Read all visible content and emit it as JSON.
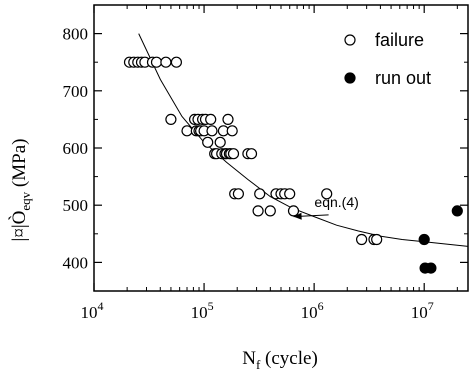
{
  "chart_data": {
    "type": "scatter",
    "x_scale": "log",
    "xlim": [
      10000,
      25000000
    ],
    "ylim": [
      350,
      850
    ],
    "x_ticks": [
      10000,
      100000,
      1000000,
      10000000
    ],
    "x_tick_labels": [
      {
        "base": "10",
        "exp": "4"
      },
      {
        "base": "10",
        "exp": "5"
      },
      {
        "base": "10",
        "exp": "6"
      },
      {
        "base": "10",
        "exp": "7"
      }
    ],
    "y_ticks": [
      400,
      500,
      600,
      700,
      800
    ],
    "y_tick_labels": [
      "400",
      "500",
      "600",
      "700",
      "800"
    ],
    "xlabel": {
      "main": "N",
      "sub": "f",
      "rest": " (cycle)"
    },
    "ylabel": {
      "main": "|¤|Ò",
      "sub": "eqv",
      "rest": " (MPa)"
    },
    "grid": false,
    "legend": {
      "placement": "top-right",
      "entries": [
        "failure",
        "run out"
      ]
    },
    "series": [
      {
        "name": "failure",
        "marker": "open-circle",
        "points": [
          [
            21000,
            750
          ],
          [
            23000,
            750
          ],
          [
            25000,
            750
          ],
          [
            27000,
            750
          ],
          [
            29000,
            750
          ],
          [
            34000,
            750
          ],
          [
            37000,
            750
          ],
          [
            45000,
            750
          ],
          [
            56000,
            750
          ],
          [
            50000,
            650
          ],
          [
            70000,
            630
          ],
          [
            82000,
            650
          ],
          [
            85000,
            630
          ],
          [
            88000,
            650
          ],
          [
            90000,
            630
          ],
          [
            93000,
            630
          ],
          [
            97000,
            650
          ],
          [
            100000,
            630
          ],
          [
            103000,
            650
          ],
          [
            108000,
            610
          ],
          [
            115000,
            650
          ],
          [
            118000,
            630
          ],
          [
            125000,
            590
          ],
          [
            130000,
            590
          ],
          [
            140000,
            610
          ],
          [
            145000,
            590
          ],
          [
            150000,
            630
          ],
          [
            155000,
            590
          ],
          [
            160000,
            590
          ],
          [
            165000,
            650
          ],
          [
            170000,
            590
          ],
          [
            175000,
            590
          ],
          [
            180000,
            630
          ],
          [
            185000,
            590
          ],
          [
            190000,
            520
          ],
          [
            205000,
            520
          ],
          [
            250000,
            590
          ],
          [
            270000,
            590
          ],
          [
            310000,
            490
          ],
          [
            320000,
            520
          ],
          [
            400000,
            490
          ],
          [
            450000,
            520
          ],
          [
            500000,
            520
          ],
          [
            540000,
            520
          ],
          [
            600000,
            520
          ],
          [
            650000,
            490
          ],
          [
            1300000,
            520
          ],
          [
            2700000,
            440
          ],
          [
            3500000,
            440
          ],
          [
            3700000,
            440
          ]
        ]
      },
      {
        "name": "run out",
        "marker": "filled-circle",
        "points": [
          [
            10000000,
            440
          ],
          [
            10200000,
            390
          ],
          [
            11500000,
            390
          ],
          [
            20000000,
            490
          ]
        ]
      }
    ],
    "fit_curve": {
      "points": [
        [
          25500,
          800
        ],
        [
          40000,
          720
        ],
        [
          63000,
          655
        ],
        [
          100000,
          610
        ],
        [
          160000,
          575
        ],
        [
          250000,
          545
        ],
        [
          400000,
          515
        ],
        [
          630000,
          495
        ],
        [
          1000000,
          480
        ],
        [
          1600000,
          465
        ],
        [
          2500000,
          455
        ],
        [
          4000000,
          446
        ],
        [
          6300000,
          440
        ],
        [
          10000000,
          436
        ],
        [
          16000000,
          432
        ],
        [
          25000000,
          428
        ]
      ]
    },
    "annotations": [
      {
        "text": "eqn.(4)",
        "at": [
          1600000,
          497
        ],
        "arrow_to": [
          650000,
          480
        ]
      }
    ]
  }
}
